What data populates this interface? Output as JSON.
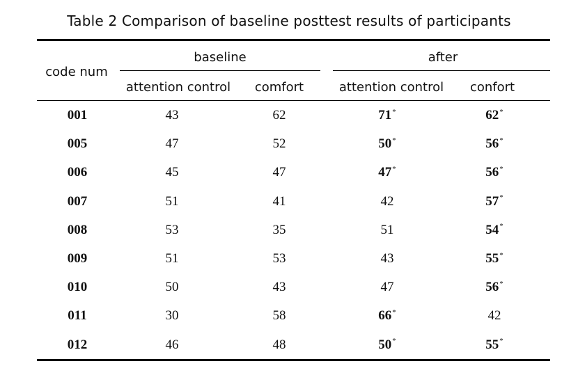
{
  "caption": "Table 2 Comparison of baseline posttest results of participants",
  "headers": {
    "code_num": "code num",
    "baseline": "baseline",
    "after": "after",
    "baseline_attention": "attention control",
    "baseline_comfort": "comfort",
    "after_attention": "attention control",
    "after_comfort": "confort"
  },
  "rows": [
    {
      "code": "001",
      "baseline_attention": "43",
      "baseline_comfort": "62",
      "after_attention": "71",
      "after_attention_sig": true,
      "after_comfort": "62",
      "after_comfort_sig": true
    },
    {
      "code": "005",
      "baseline_attention": "47",
      "baseline_comfort": "52",
      "after_attention": "50",
      "after_attention_sig": true,
      "after_comfort": "56",
      "after_comfort_sig": true
    },
    {
      "code": "006",
      "baseline_attention": "45",
      "baseline_comfort": "47",
      "after_attention": "47",
      "after_attention_sig": true,
      "after_comfort": "56",
      "after_comfort_sig": true
    },
    {
      "code": "007",
      "baseline_attention": "51",
      "baseline_comfort": "41",
      "after_attention": "42",
      "after_attention_sig": false,
      "after_comfort": "57",
      "after_comfort_sig": true
    },
    {
      "code": "008",
      "baseline_attention": "53",
      "baseline_comfort": "35",
      "after_attention": "51",
      "after_attention_sig": false,
      "after_comfort": "54",
      "after_comfort_sig": true
    },
    {
      "code": "009",
      "baseline_attention": "51",
      "baseline_comfort": "53",
      "after_attention": "43",
      "after_attention_sig": false,
      "after_comfort": "55",
      "after_comfort_sig": true
    },
    {
      "code": "010",
      "baseline_attention": "50",
      "baseline_comfort": "43",
      "after_attention": "47",
      "after_attention_sig": false,
      "after_comfort": "56",
      "after_comfort_sig": true
    },
    {
      "code": "011",
      "baseline_attention": "30",
      "baseline_comfort": "58",
      "after_attention": "66",
      "after_attention_sig": true,
      "after_comfort": "42",
      "after_comfort_sig": false
    },
    {
      "code": "012",
      "baseline_attention": "46",
      "baseline_comfort": "48",
      "after_attention": "50",
      "after_attention_sig": true,
      "after_comfort": "55",
      "after_comfort_sig": true
    }
  ]
}
